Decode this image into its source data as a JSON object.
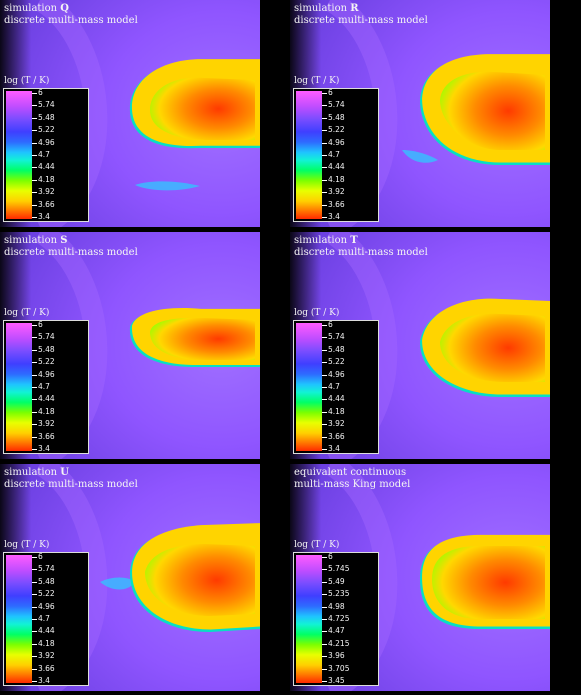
{
  "panels": [
    {
      "line1": "simulation ",
      "letter": "Q",
      "line2": "discrete multi-mass model",
      "cb_label": "log (T / K)",
      "ticks": [
        "6",
        "5.74",
        "5.48",
        "5.22",
        "4.96",
        "4.7",
        "4.44",
        "4.18",
        "3.92",
        "3.66",
        "3.4"
      ]
    },
    {
      "line1": "simulation ",
      "letter": "R",
      "line2": "discrete multi-mass model",
      "cb_label": "log (T / K)",
      "ticks": [
        "6",
        "5.74",
        "5.48",
        "5.22",
        "4.96",
        "4.7",
        "4.44",
        "4.18",
        "3.92",
        "3.66",
        "3.4"
      ]
    },
    {
      "line1": "simulation ",
      "letter": "S",
      "line2": "discrete multi-mass model",
      "cb_label": "log (T / K)",
      "ticks": [
        "6",
        "5.74",
        "5.48",
        "5.22",
        "4.96",
        "4.7",
        "4.44",
        "4.18",
        "3.92",
        "3.66",
        "3.4"
      ]
    },
    {
      "line1": "simulation ",
      "letter": "T",
      "line2": "discrete multi-mass model",
      "cb_label": "log (T / K)",
      "ticks": [
        "6",
        "5.74",
        "5.48",
        "5.22",
        "4.96",
        "4.7",
        "4.44",
        "4.18",
        "3.92",
        "3.66",
        "3.4"
      ]
    },
    {
      "line1": "simulation ",
      "letter": "U",
      "line2": "discrete multi-mass model",
      "cb_label": "log (T / K)",
      "ticks": [
        "6",
        "5.74",
        "5.48",
        "5.22",
        "4.96",
        "4.7",
        "4.44",
        "4.18",
        "3.92",
        "3.66",
        "3.4"
      ]
    },
    {
      "line1": "equivalent continuous",
      "letter": "",
      "line2": "multi-mass King model",
      "cb_label": "log (T / K)",
      "ticks": [
        "6",
        "5.745",
        "5.49",
        "5.235",
        "4.98",
        "4.725",
        "4.47",
        "4.215",
        "3.96",
        "3.705",
        "3.45"
      ]
    }
  ],
  "colors": {
    "background": "#000000",
    "ambient_gas": "#8f55ff",
    "shock_shell": "#a266ff",
    "cool_core": "#ff8a00"
  }
}
